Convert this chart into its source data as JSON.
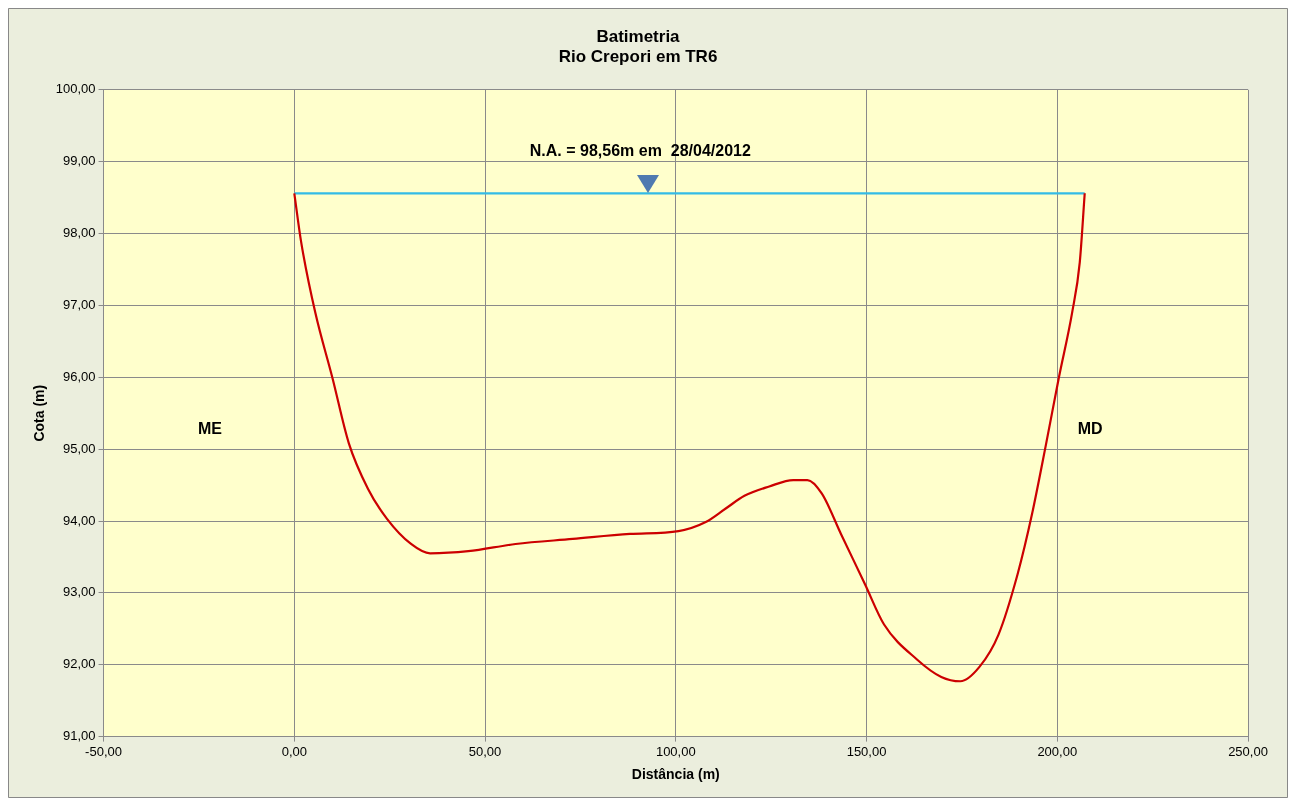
{
  "chart_data": {
    "type": "line",
    "title": "Batimetria",
    "subtitle": "Rio Crepori em TR6",
    "xlabel": "Distância (m)",
    "ylabel": "Cota (m)",
    "xlim": [
      -50,
      250
    ],
    "xticks": [
      {
        "value": -50,
        "label": "-50,00"
      },
      {
        "value": 0,
        "label": "0,00"
      },
      {
        "value": 50,
        "label": "50,00"
      },
      {
        "value": 100,
        "label": "100,00"
      },
      {
        "value": 150,
        "label": "150,00"
      },
      {
        "value": 200,
        "label": "200,00"
      },
      {
        "value": 250,
        "label": "250,00"
      }
    ],
    "ylim": [
      91,
      100
    ],
    "yticks": [
      {
        "value": 91,
        "label": "91,00"
      },
      {
        "value": 92,
        "label": "92,00"
      },
      {
        "value": 93,
        "label": "93,00"
      },
      {
        "value": 94,
        "label": "94,00"
      },
      {
        "value": 95,
        "label": "95,00"
      },
      {
        "value": 96,
        "label": "96,00"
      },
      {
        "value": 97,
        "label": "97,00"
      },
      {
        "value": 98,
        "label": "98,00"
      },
      {
        "value": 99,
        "label": "99,00"
      },
      {
        "value": 100,
        "label": "100,00"
      }
    ],
    "grid": true,
    "legend": false,
    "marker": "none",
    "series": [
      {
        "color": "#cc0000",
        "x": [
          0,
          1.8,
          5.5,
          10,
          14.3,
          19.3,
          24.3,
          30.6,
          35.6,
          45.6,
          58,
          73,
          88,
          100.7,
          108,
          113,
          118,
          124.5,
          130.8,
          134.5,
          138.3,
          143.3,
          149.6,
          154.6,
          163.3,
          169.6,
          174.6,
          179.6,
          184.6,
          189.6,
          193.4,
          197.1,
          200.4,
          203.9,
          205.9,
          207.2
        ],
        "values": [
          98.56,
          97.88,
          96.9,
          95.99,
          95.08,
          94.45,
          94.03,
          93.68,
          93.55,
          93.58,
          93.68,
          93.75,
          93.82,
          93.86,
          93.99,
          94.17,
          94.35,
          94.48,
          94.57,
          94.57,
          94.38,
          93.82,
          93.12,
          92.56,
          92.07,
          91.83,
          91.77,
          91.97,
          92.42,
          93.26,
          94.1,
          95.08,
          95.99,
          96.9,
          97.6,
          98.56
        ]
      },
      {
        "color": "#33bbe6",
        "x": [
          0,
          207.2
        ],
        "values": [
          98.56,
          98.56
        ]
      }
    ],
    "annotations": [
      {
        "text": "N.A. = 98,56m em  28/04/2012",
        "x": 90.7,
        "y": 98.56
      },
      "ME",
      "MD"
    ]
  }
}
